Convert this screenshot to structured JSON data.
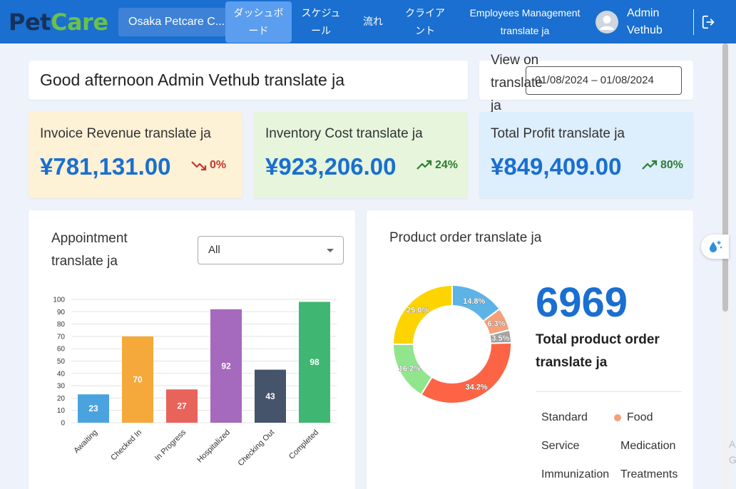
{
  "header": {
    "logo_part1": "Pet",
    "logo_part2": "Care",
    "clinic_name": "Osaka Petcare C...",
    "nav": [
      {
        "line1": "ダッシュボ",
        "line2": "ード",
        "active": true
      },
      {
        "line1": "スケジュ",
        "line2": "ール",
        "active": false
      },
      {
        "line1": "流れ",
        "line2": "",
        "active": false
      },
      {
        "line1": "クライア",
        "line2": "ント",
        "active": false
      },
      {
        "line1": "Employees Management",
        "line2": "translate ja",
        "active": false
      }
    ],
    "user_line1": "Admin",
    "user_line2": "Vethub",
    "avatar_icon": "person-avatar-icon",
    "logout_icon": "logout-icon"
  },
  "greeting": "Good afternoon Admin Vethub translate ja",
  "view_on": {
    "label": "View on translate ja",
    "date_range": "01/08/2024 – 01/08/2024"
  },
  "stats": [
    {
      "label": "Invoice Revenue translate ja",
      "value": "¥781,131.00",
      "delta": "0%",
      "trend": "down",
      "bg": "#fdf1d6",
      "delta_color": "#c0392b"
    },
    {
      "label": "Inventory Cost translate ja",
      "value": "¥923,206.00",
      "delta": "24%",
      "trend": "up",
      "bg": "#e6f5dc",
      "delta_color": "#2e7d32"
    },
    {
      "label": "Total Profit translate ja",
      "value": "¥849,409.00",
      "delta": "80%",
      "trend": "up",
      "bg": "#ddeefc",
      "delta_color": "#2e7d32"
    }
  ],
  "appointment": {
    "title": "Appointment translate ja",
    "filter_value": "All"
  },
  "chart_data": [
    {
      "type": "bar",
      "categories": [
        "Awaiting",
        "Checked In",
        "In Progress",
        "Hospitalized",
        "Checking Out",
        "Completed"
      ],
      "values": [
        23,
        70,
        27,
        92,
        43,
        98
      ],
      "colors": [
        "#4aa3df",
        "#f4a93a",
        "#e8635a",
        "#a569bd",
        "#45546a",
        "#3fb672"
      ],
      "ylim": [
        0,
        100
      ],
      "yticks": [
        0,
        10,
        20,
        30,
        40,
        50,
        60,
        70,
        80,
        90,
        100
      ],
      "grid": true
    },
    {
      "type": "pie",
      "categories": [
        "Standard",
        "Food",
        "Service",
        "Medication",
        "Immunization",
        "Treatments"
      ],
      "values": [
        14.8,
        6.3,
        3.5,
        34.2,
        16.2,
        25.0
      ],
      "labels": [
        "14.8%",
        "6.3%",
        "3.5%",
        "34.2%",
        "16.2%",
        "25.0%"
      ],
      "colors": [
        "#5db3e6",
        "#f4a07a",
        "#a3a3a3",
        "#fc6445",
        "#91e58d",
        "#fdd400"
      ]
    }
  ],
  "product_order": {
    "title": "Product order translate ja",
    "total": "6969",
    "total_label": "Total product order translate ja",
    "legend": [
      {
        "label": "Standard",
        "dot": false
      },
      {
        "label": "Food",
        "dot": true,
        "color": "#f4a07a"
      },
      {
        "label": "Service",
        "dot": false
      },
      {
        "label": "Medication",
        "dot": false
      },
      {
        "label": "Immunization",
        "dot": false
      },
      {
        "label": "Treatments",
        "dot": false
      }
    ]
  },
  "edge_text": "A G"
}
